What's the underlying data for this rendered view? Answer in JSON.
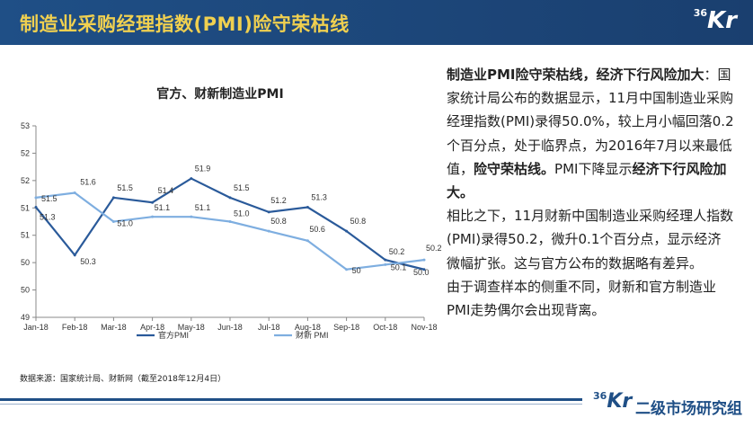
{
  "header": {
    "title": "制造业采购经理指数(PMI)险守荣枯线",
    "logo_sup": "36",
    "logo_main": "Kr"
  },
  "chart_data": {
    "type": "line",
    "title": "官方、财新制造业PMI",
    "categories": [
      "Jan-18",
      "Feb-18",
      "Mar-18",
      "Apr-18",
      "May-18",
      "Jun-18",
      "Jul-18",
      "Aug-18",
      "Sep-18",
      "Oct-18",
      "Nov-18"
    ],
    "ylim": [
      49,
      53
    ],
    "yticks": [
      "53",
      "52",
      "52",
      "51",
      "51",
      "50",
      "50",
      "49"
    ],
    "series": [
      {
        "name": "官方PMI",
        "color": "#2a5a9a",
        "values": [
          51.3,
          50.3,
          51.5,
          51.4,
          51.9,
          51.5,
          51.2,
          51.3,
          50.8,
          50.2,
          50.0
        ],
        "labels": [
          "51.3",
          "50.3",
          "51.5",
          "51.4",
          "51.9",
          "51.5",
          "51.2",
          "51.3",
          "50.8",
          "50.2",
          "50.0"
        ]
      },
      {
        "name": "财新 PMI",
        "color": "#7eaee0",
        "values": [
          51.5,
          51.6,
          51.0,
          51.1,
          51.1,
          51.0,
          50.8,
          50.6,
          50.0,
          50.1,
          50.2
        ],
        "labels": [
          "51.5",
          "51.6",
          "51.0",
          "51.1",
          "51.1",
          "51.0",
          "50.8",
          "50.6",
          "50",
          "50.1",
          "50.2"
        ]
      }
    ],
    "legend": "bottom",
    "grid": false
  },
  "source": "数据来源：国家统计局、财新网（截至2018年12月4日）",
  "text": {
    "p1_bold": "制造业PMI险守荣枯线，经济下行风险加大",
    "p1_colon": "：",
    "p1_a": "国家统计局公布的数据显示，11月中国制造业采购经理指数(PMI)录得50.0%，较上月小幅回落0.2个百分点，处于临界点，为2016年7月以来最低值，",
    "p1_b": "险守荣枯线。",
    "p1_c": "PMI下降显示",
    "p1_d": "经济下行风险加大。",
    "p2": "相比之下，11月财新中国制造业采购经理人指数(PMI)录得50.2，微升0.1个百分点，显示经济微幅扩张。这与官方公布的数据略有差异。",
    "p3": "由于调查样本的侧重不同，财新和官方制造业PMI走势偶尔会出现背离。"
  },
  "footer": {
    "logo_sup": "36",
    "logo_main": "Kr",
    "text": "二级市场研究组"
  }
}
